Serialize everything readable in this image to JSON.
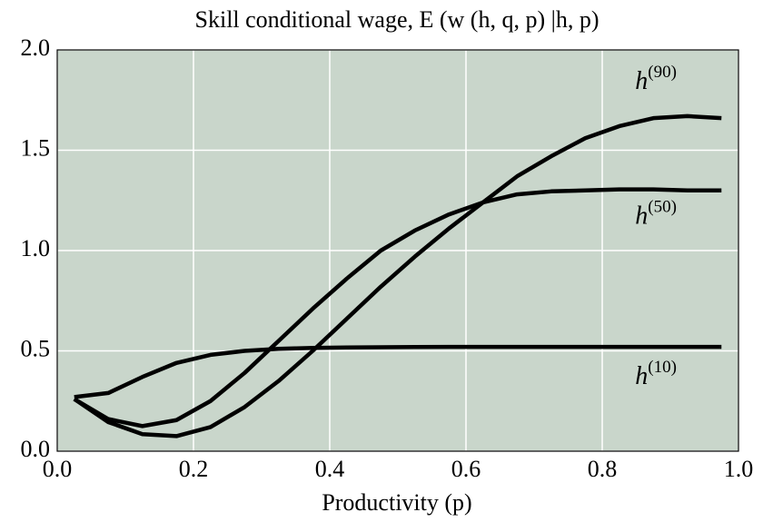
{
  "chart_data": {
    "type": "line",
    "title": "Skill conditional wage, E (w (h, q, p) |h, p)",
    "x_label": "Productivity (p)",
    "x": [
      0.025,
      0.075,
      0.125,
      0.175,
      0.225,
      0.275,
      0.325,
      0.375,
      0.425,
      0.475,
      0.525,
      0.575,
      0.625,
      0.675,
      0.725,
      0.775,
      0.825,
      0.875,
      0.925,
      0.975
    ],
    "series": [
      {
        "name": "h",
        "superscript": "(10)",
        "color": "#000000",
        "values": [
          0.27,
          0.29,
          0.37,
          0.44,
          0.48,
          0.5,
          0.51,
          0.515,
          0.517,
          0.518,
          0.519,
          0.52,
          0.52,
          0.52,
          0.52,
          0.52,
          0.52,
          0.52,
          0.52,
          0.52
        ]
      },
      {
        "name": "h",
        "superscript": "(50)",
        "color": "#000000",
        "values": [
          0.26,
          0.16,
          0.125,
          0.155,
          0.25,
          0.39,
          0.55,
          0.71,
          0.86,
          1.0,
          1.1,
          1.18,
          1.24,
          1.28,
          1.295,
          1.3,
          1.305,
          1.305,
          1.3,
          1.3
        ]
      },
      {
        "name": "h",
        "superscript": "(90)",
        "color": "#000000",
        "values": [
          0.26,
          0.145,
          0.085,
          0.075,
          0.12,
          0.22,
          0.35,
          0.5,
          0.66,
          0.82,
          0.97,
          1.11,
          1.24,
          1.37,
          1.47,
          1.56,
          1.62,
          1.66,
          1.67,
          1.66
        ]
      }
    ],
    "xlim": [
      0,
      1
    ],
    "ylim": [
      0,
      2
    ],
    "xticks": [
      {
        "value": 0,
        "label": "0.0"
      },
      {
        "value": 0.2,
        "label": "0.2"
      },
      {
        "value": 0.4,
        "label": "0.4"
      },
      {
        "value": 0.6,
        "label": "0.6"
      },
      {
        "value": 0.8,
        "label": "0.8"
      },
      {
        "value": 1,
        "label": "1.0"
      }
    ],
    "yticks": [
      {
        "value": 0,
        "label": "0.0"
      },
      {
        "value": 0.5,
        "label": "0.5"
      },
      {
        "value": 1,
        "label": "1.0"
      },
      {
        "value": 1.5,
        "label": "1.5"
      },
      {
        "value": 2,
        "label": "2.0"
      }
    ],
    "grid": true,
    "background": "#c9d6cb"
  }
}
